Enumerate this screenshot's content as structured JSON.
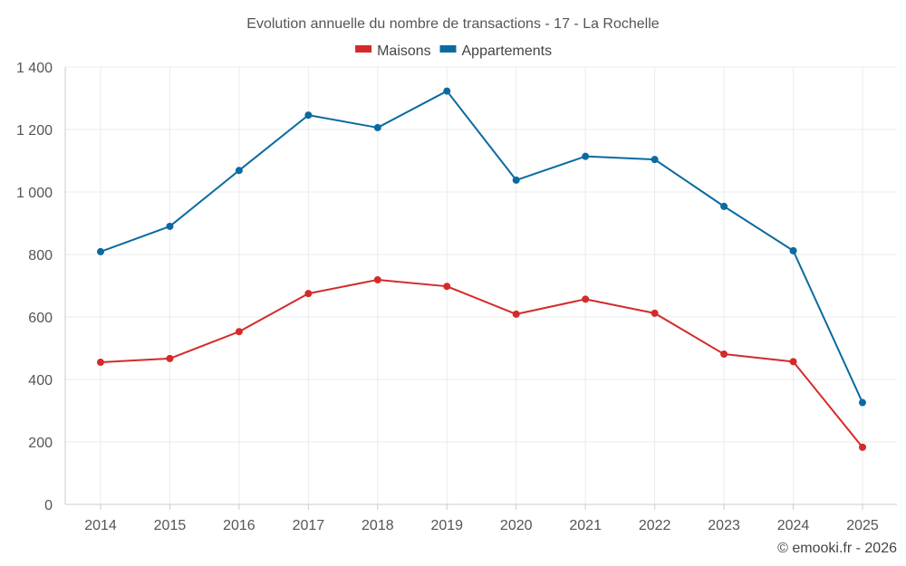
{
  "chart_data": {
    "type": "line",
    "title": "Evolution annuelle du nombre de transactions - 17 - La Rochelle",
    "categories": [
      "2014",
      "2015",
      "2016",
      "2017",
      "2018",
      "2019",
      "2020",
      "2021",
      "2022",
      "2023",
      "2024",
      "2025"
    ],
    "series": [
      {
        "name": "Maisons",
        "color": "#d42a2a",
        "values": [
          455,
          467,
          553,
          675,
          719,
          698,
          609,
          657,
          612,
          481,
          457,
          183
        ]
      },
      {
        "name": "Appartements",
        "color": "#0b6aa0",
        "values": [
          809,
          890,
          1069,
          1246,
          1206,
          1323,
          1038,
          1114,
          1104,
          954,
          812,
          326
        ]
      }
    ],
    "ylim": [
      0,
      1400
    ],
    "yticks": [
      0,
      200,
      400,
      600,
      800,
      1000,
      1200,
      1400
    ],
    "ytick_labels": [
      "0",
      "200",
      "400",
      "600",
      "800",
      "1 000",
      "1 200",
      "1 400"
    ],
    "xlabel": "",
    "ylabel": "",
    "grid": true,
    "legend_position": "top-center"
  },
  "credit": "© emooki.fr - 2026"
}
